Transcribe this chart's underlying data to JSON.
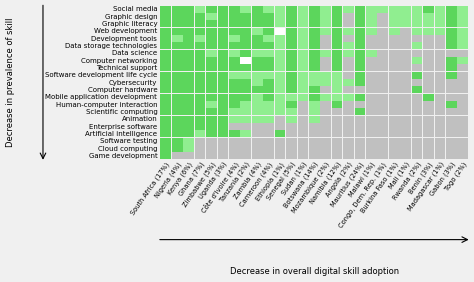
{
  "rows": [
    "Social media",
    "Graphic design",
    "Graphic literacy",
    "Web development",
    "Development tools",
    "Data storage technologies",
    "Data science",
    "Computer networking",
    "Technical support",
    "Software development life cycle",
    "Cybersecurity",
    "Computer hardware",
    "Mobile application development",
    "Human-computer interaction",
    "Scientific computing",
    "Animation",
    "Enterprise software",
    "Artificial intelligence",
    "Software testing",
    "Cloud computing",
    "Game development"
  ],
  "cols": [
    "South Africa (17%)",
    "Nigeria (4%)",
    "Kenya (6%)",
    "Ghana (7%)",
    "Zimbabwe (5%)",
    "Uganda (3%)",
    "Côte d'Ivoire (4%)",
    "Tanzania (2%)",
    "Zambia (4%)",
    "Cameroon (4%)",
    "Ethiopia (1%)",
    "Senegal (5%)",
    "Sudan (1%)",
    "Botswana (14%)",
    "Mozambique (2%)",
    "Namibia (12%)",
    "Angola (2%)",
    "Mauritius (24%)",
    "Malawi (1%)",
    "Congo, Dem. Rep. (1%)",
    "Burkina Faso (1%)",
    "Mali (1%)",
    "Rwanda (2%)",
    "Benin (3%)",
    "Madagascar (1%)",
    "Gabon (3%)",
    "Togo (2%)"
  ],
  "grid": [
    [
      3,
      3,
      3,
      2,
      3,
      3,
      3,
      2,
      3,
      2,
      2,
      3,
      2,
      3,
      2,
      3,
      2,
      3,
      2,
      2,
      2,
      2,
      2,
      3,
      2,
      3,
      2
    ],
    [
      3,
      3,
      3,
      3,
      2,
      3,
      3,
      3,
      3,
      3,
      2,
      3,
      2,
      3,
      2,
      3,
      0,
      3,
      2,
      0,
      2,
      2,
      2,
      2,
      2,
      3,
      2
    ],
    [
      3,
      3,
      3,
      3,
      3,
      3,
      3,
      3,
      3,
      3,
      2,
      3,
      2,
      3,
      2,
      3,
      0,
      3,
      2,
      0,
      2,
      2,
      2,
      2,
      2,
      3,
      2
    ],
    [
      3,
      3,
      3,
      3,
      3,
      3,
      3,
      3,
      2,
      3,
      4,
      3,
      2,
      3,
      2,
      3,
      2,
      3,
      2,
      0,
      2,
      0,
      2,
      2,
      2,
      3,
      2
    ],
    [
      3,
      2,
      3,
      2,
      3,
      3,
      2,
      3,
      3,
      2,
      2,
      3,
      2,
      3,
      0,
      3,
      0,
      3,
      0,
      0,
      0,
      0,
      0,
      0,
      0,
      3,
      2
    ],
    [
      3,
      3,
      3,
      3,
      3,
      3,
      3,
      3,
      3,
      3,
      2,
      3,
      2,
      3,
      0,
      3,
      2,
      3,
      0,
      0,
      0,
      0,
      2,
      0,
      0,
      3,
      2
    ],
    [
      3,
      3,
      3,
      3,
      2,
      3,
      2,
      3,
      2,
      2,
      2,
      3,
      2,
      3,
      2,
      3,
      2,
      3,
      2,
      0,
      0,
      0,
      0,
      0,
      0,
      0,
      0
    ],
    [
      3,
      3,
      3,
      3,
      3,
      3,
      3,
      4,
      3,
      3,
      2,
      3,
      2,
      3,
      0,
      3,
      0,
      3,
      0,
      0,
      0,
      0,
      2,
      0,
      0,
      3,
      2
    ],
    [
      3,
      3,
      3,
      3,
      3,
      3,
      3,
      3,
      3,
      3,
      2,
      3,
      2,
      3,
      0,
      3,
      0,
      3,
      0,
      0,
      0,
      0,
      0,
      0,
      0,
      3,
      0
    ],
    [
      3,
      3,
      3,
      3,
      3,
      3,
      2,
      2,
      2,
      2,
      2,
      3,
      2,
      2,
      2,
      2,
      0,
      3,
      0,
      0,
      0,
      0,
      3,
      0,
      0,
      3,
      0
    ],
    [
      3,
      3,
      3,
      3,
      3,
      3,
      3,
      3,
      2,
      3,
      2,
      3,
      2,
      2,
      2,
      2,
      2,
      3,
      0,
      0,
      0,
      0,
      0,
      0,
      0,
      0,
      0
    ],
    [
      3,
      3,
      3,
      3,
      3,
      3,
      3,
      3,
      3,
      3,
      2,
      3,
      2,
      3,
      0,
      2,
      0,
      0,
      0,
      0,
      0,
      0,
      3,
      0,
      0,
      0,
      0
    ],
    [
      3,
      3,
      3,
      3,
      3,
      3,
      3,
      3,
      2,
      3,
      2,
      2,
      2,
      3,
      2,
      2,
      2,
      3,
      0,
      0,
      0,
      0,
      0,
      3,
      0,
      0,
      0
    ],
    [
      3,
      3,
      3,
      3,
      2,
      3,
      3,
      2,
      2,
      2,
      2,
      3,
      0,
      2,
      0,
      3,
      0,
      0,
      0,
      0,
      0,
      0,
      0,
      0,
      0,
      3,
      0
    ],
    [
      3,
      3,
      3,
      3,
      3,
      3,
      2,
      2,
      2,
      2,
      2,
      2,
      0,
      2,
      0,
      0,
      0,
      3,
      0,
      0,
      0,
      0,
      0,
      0,
      0,
      0,
      0
    ],
    [
      3,
      3,
      3,
      3,
      3,
      3,
      2,
      2,
      2,
      2,
      0,
      2,
      0,
      2,
      0,
      0,
      0,
      0,
      0,
      0,
      0,
      0,
      0,
      0,
      0,
      0,
      0
    ],
    [
      3,
      3,
      3,
      3,
      3,
      3,
      0,
      0,
      0,
      0,
      0,
      0,
      0,
      0,
      0,
      0,
      0,
      0,
      0,
      0,
      0,
      0,
      0,
      0,
      0,
      0,
      0
    ],
    [
      3,
      3,
      3,
      2,
      3,
      3,
      3,
      2,
      0,
      0,
      3,
      0,
      0,
      0,
      0,
      0,
      0,
      0,
      0,
      0,
      0,
      0,
      0,
      0,
      0,
      0,
      0
    ],
    [
      3,
      3,
      2,
      0,
      0,
      0,
      0,
      0,
      0,
      0,
      0,
      0,
      0,
      0,
      0,
      0,
      0,
      0,
      0,
      0,
      0,
      0,
      0,
      0,
      0,
      0,
      0
    ],
    [
      3,
      3,
      2,
      0,
      0,
      0,
      0,
      0,
      0,
      0,
      0,
      0,
      0,
      0,
      0,
      0,
      0,
      0,
      0,
      0,
      0,
      0,
      0,
      0,
      0,
      0,
      0
    ],
    [
      3,
      0,
      0,
      0,
      0,
      0,
      0,
      0,
      0,
      0,
      0,
      0,
      0,
      0,
      0,
      0,
      0,
      0,
      0,
      0,
      0,
      0,
      0,
      0,
      0,
      0,
      0
    ]
  ],
  "color_map": {
    "0": "#c0c0c0",
    "2": "#90ee90",
    "3": "#5cd65c",
    "4": "#ffffff"
  },
  "xlabel": "Decrease in overall digital skill adoption",
  "ylabel": "Decrease in prevalence of skill",
  "bg_color": "#f0f0f0",
  "tick_fontsize": 4.8,
  "label_fontsize": 6.0,
  "row_label_fontsize": 5.0
}
